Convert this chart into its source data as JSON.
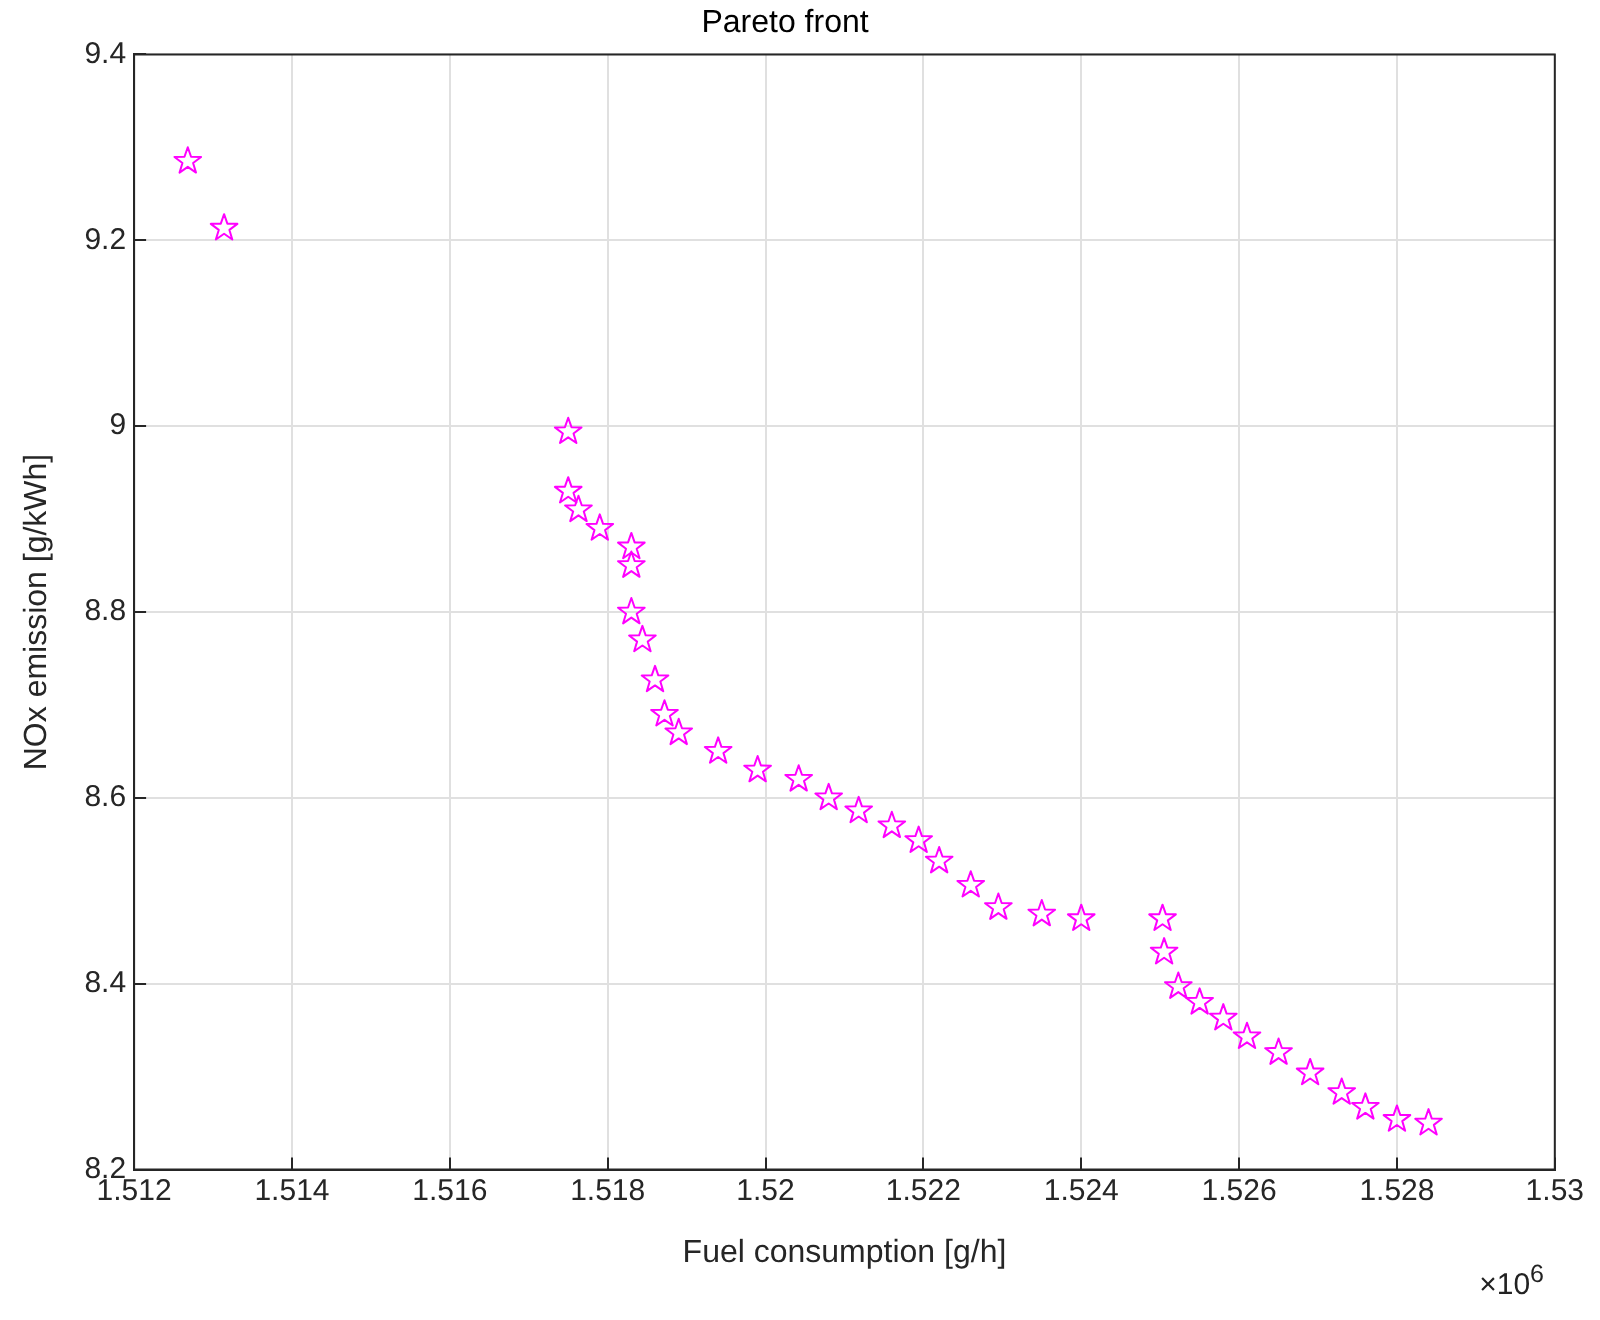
{
  "chart_data": {
    "type": "scatter",
    "title": "Pareto front",
    "xlabel": "Fuel consumption [g/h]",
    "ylabel": "NOx emission [g/kWh]",
    "annotations": [
      "×10$^{6}$"
    ],
    "series": [
      {
        "color": "#ff00ff",
        "x": [
          1.51268,
          1.51314,
          1.5175,
          1.5175,
          1.51763,
          1.5179,
          1.5183,
          1.5183,
          1.5183,
          1.51844,
          1.5186,
          1.51872,
          1.5189,
          1.5194,
          1.5199,
          1.52042,
          1.5208,
          1.52118,
          1.5216,
          1.52194,
          1.5222,
          1.5226,
          1.52295,
          1.5235,
          1.524,
          1.52503,
          1.52505,
          1.52523,
          1.5255,
          1.5258,
          1.5261,
          1.5265,
          1.5269,
          1.5273,
          1.5276,
          1.528,
          1.5284
        ],
        "values": [
          9.285,
          9.213,
          8.994,
          8.93,
          8.91,
          8.89,
          8.87,
          8.85,
          8.8,
          8.77,
          8.727,
          8.69,
          8.67,
          8.65,
          8.63,
          8.62,
          8.6,
          8.586,
          8.57,
          8.554,
          8.532,
          8.506,
          8.482,
          8.475,
          8.47,
          8.47,
          8.434,
          8.397,
          8.38,
          8.363,
          8.343,
          8.326,
          8.304,
          8.283,
          8.267,
          8.254,
          8.25
        ]
      }
    ],
    "xlim": [
      1.512,
      1.53
    ],
    "xticks": [
      1.512,
      1.514,
      1.516,
      1.518,
      1.52,
      1.522,
      1.524,
      1.526,
      1.528,
      1.53
    ],
    "ylim": [
      8.2,
      9.4
    ],
    "yticks": [
      8.2,
      8.4,
      8.6,
      8.8,
      9,
      9.2,
      9.4
    ],
    "grid": true,
    "marker": "star",
    "legend": false
  }
}
